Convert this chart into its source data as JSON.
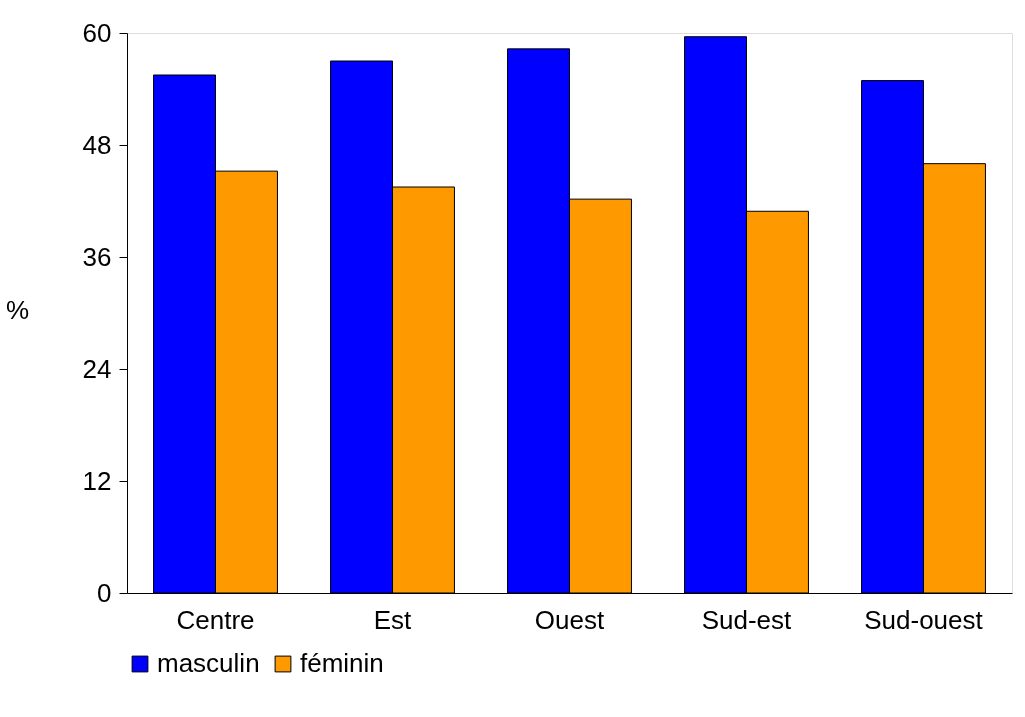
{
  "chart_data": {
    "type": "bar",
    "ylabel": "%",
    "categories": [
      "Centre",
      "Est",
      "Ouest",
      "Sud-est",
      "Sud-ouest"
    ],
    "series": [
      {
        "name": "masculin",
        "color": "#0000ff",
        "values": [
          55.5,
          57.0,
          58.3,
          59.6,
          54.9
        ]
      },
      {
        "name": "féminin",
        "color": "#ff9900",
        "values": [
          45.2,
          43.5,
          42.2,
          40.9,
          46.0
        ]
      }
    ],
    "ylim": [
      0,
      60
    ],
    "yticks": [
      0,
      12,
      24,
      36,
      48,
      60
    ],
    "grid": false,
    "legend": "bottom"
  }
}
